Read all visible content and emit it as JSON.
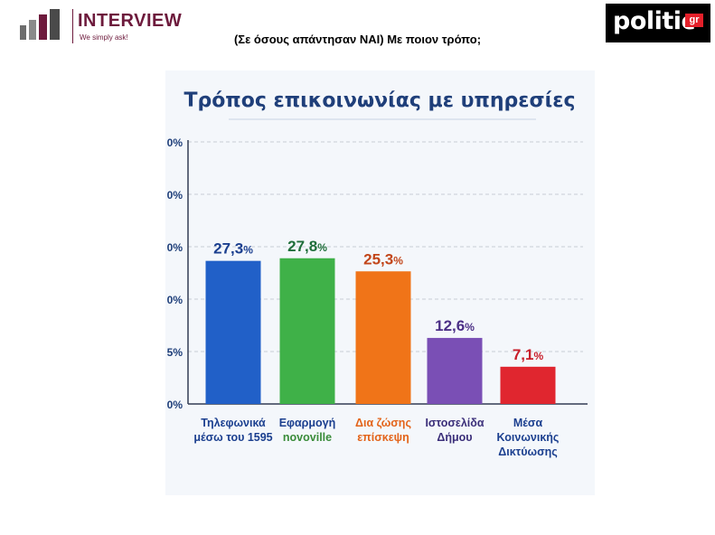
{
  "header": {
    "brand": "INTERVIEW",
    "tagline": "We simply ask!",
    "question": "(Σε όσους απάντησαν ΝΑΙ) Με ποιον τρόπο;",
    "publisher_logo": "politic",
    "publisher_suffix": "gr"
  },
  "chart_data": {
    "type": "bar",
    "title": "Τρόπος επικοινωνίας με υπηρεσίες",
    "categories": [
      [
        "Τηλεφωνικά",
        "μέσω του 1595"
      ],
      [
        "Εφαρμογή",
        "novoville"
      ],
      [
        "Δια ζώσης",
        "επίσκεψη"
      ],
      [
        "Ιστοσελίδα",
        "Δήμου"
      ],
      [
        "Μέσα",
        "Κοινωνικής",
        "Δικτύωσης"
      ]
    ],
    "values": [
      27.3,
      27.8,
      25.3,
      12.6,
      7.1
    ],
    "value_labels": [
      "27,3",
      "27,8",
      "25,3",
      "12,6",
      "7,1"
    ],
    "value_suffix": "%",
    "tick_labels": [
      "0%",
      "5%",
      "0%",
      "0%",
      "0%",
      "0%"
    ],
    "ylim": [
      0,
      50
    ],
    "grid": true,
    "colors": {
      "bars": [
        "#2160c8",
        "#3fb148",
        "#f07418",
        "#7a4fb5",
        "#e0262f"
      ],
      "value_labels": [
        "#1b3f8f",
        "#1f6e3a",
        "#c2461a",
        "#4b2f86",
        "#c81e2a"
      ],
      "category_line1": [
        "#1b3f8f",
        "#1b3f8f",
        "#e3641a",
        "#3b2f7a",
        "#1b3f8f"
      ],
      "category_line2": [
        "#1b3f8f",
        "#3a8c3a",
        "#e3641a",
        "#3b2f7a",
        "#1b3f8f"
      ],
      "title": "#1f3f7a",
      "axis": "#1f3f7a"
    }
  }
}
